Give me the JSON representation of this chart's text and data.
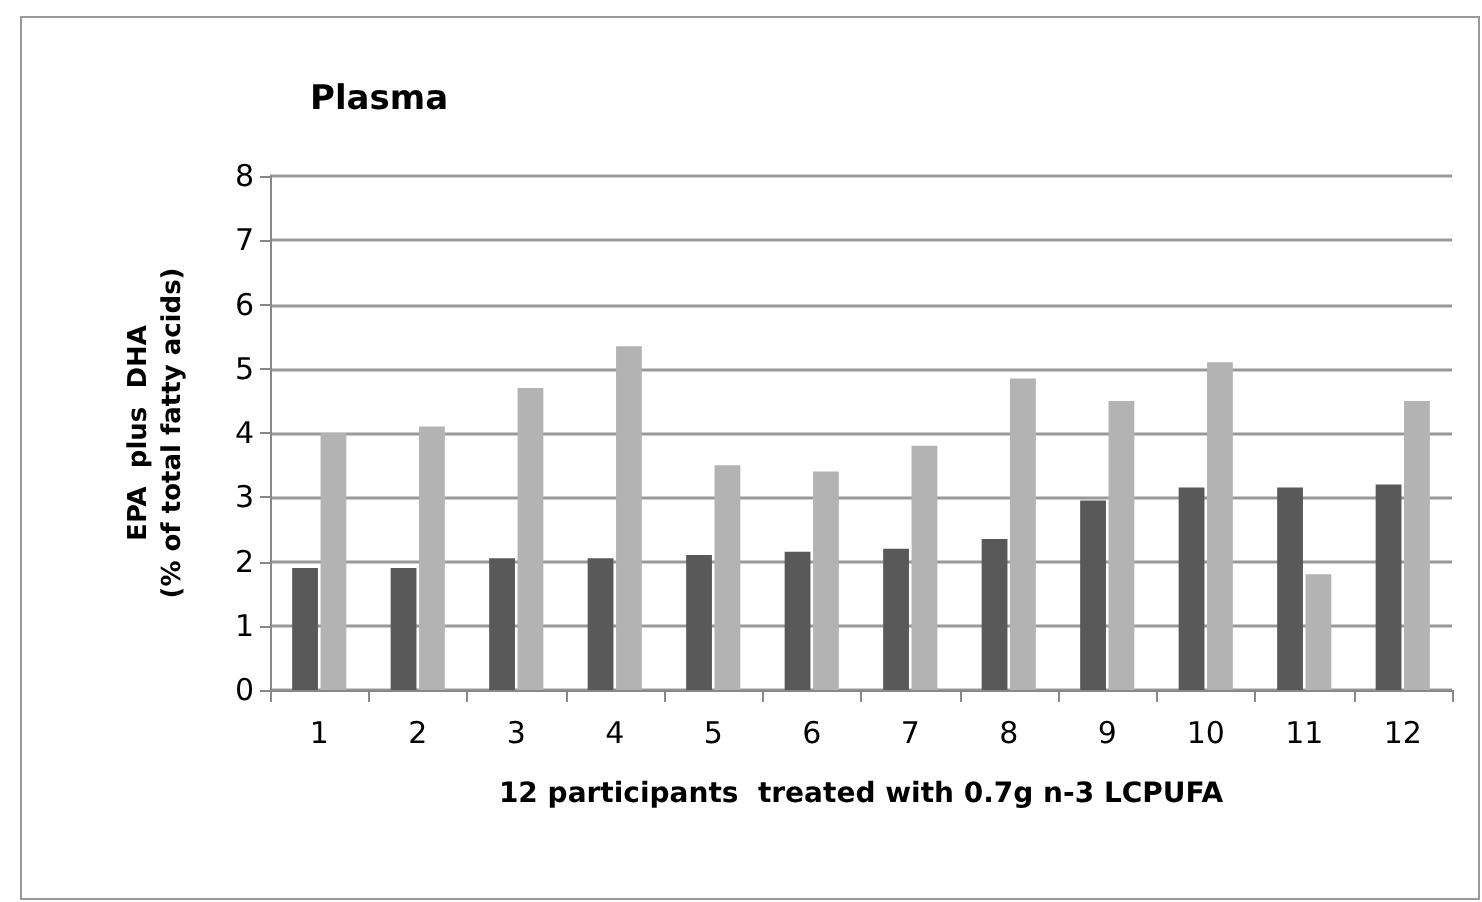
{
  "chart_data": {
    "type": "bar",
    "title": "Plasma",
    "xlabel": "12 participants  treated with 0.7g n-3 LCPUFA",
    "ylabel": "EPA  plus  DHA\n(% of total fatty acids)",
    "categories": [
      "1",
      "2",
      "3",
      "4",
      "5",
      "6",
      "7",
      "8",
      "9",
      "10",
      "11",
      "12"
    ],
    "series": [
      {
        "color": "#595959",
        "values": [
          1.9,
          1.9,
          2.05,
          2.05,
          2.1,
          2.15,
          2.2,
          2.35,
          2.95,
          3.15,
          3.15,
          3.2
        ]
      },
      {
        "color": "#b3b3b3",
        "values": [
          4.0,
          4.1,
          4.7,
          5.35,
          3.5,
          3.4,
          3.8,
          4.85,
          4.5,
          5.1,
          1.8,
          4.5
        ]
      }
    ],
    "ylim": [
      0,
      8
    ],
    "yticks": [
      0,
      1,
      2,
      3,
      4,
      5,
      6,
      7,
      8
    ],
    "grid": "y"
  }
}
